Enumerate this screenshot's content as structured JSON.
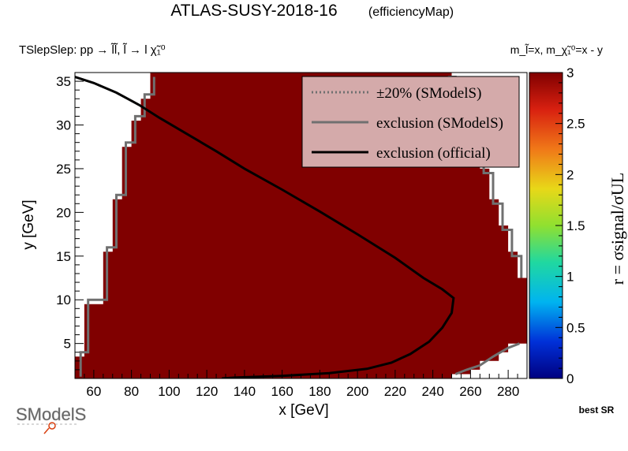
{
  "header": {
    "title": "ATLAS-SUSY-2018-16",
    "subtitle": "(efficiencyMap)",
    "process": "TSlepSlep: pp → l̃l̃, l̃ → l χ̃₁⁰",
    "mass_relation": "m_l̃=x, m_χ̃₁⁰=x - y",
    "best_sr": "best SR",
    "logo": "SModelS"
  },
  "colors": {
    "fill": "#800000",
    "official": "#000000",
    "smodels": "#707070",
    "legend_bg": "#d4aaaa"
  },
  "chart_data": {
    "type": "heatmap",
    "title": "ATLAS-SUSY-2018-16",
    "xlabel": "x [GeV]",
    "ylabel": "y [GeV]",
    "zlabel": "r = σsignal/σUL",
    "xlim": [
      50,
      290
    ],
    "ylim": [
      1,
      36
    ],
    "zlim": [
      0,
      3
    ],
    "xticks": [
      60,
      80,
      100,
      120,
      140,
      160,
      180,
      200,
      220,
      240,
      260,
      280
    ],
    "yticks": [
      5,
      10,
      15,
      20,
      25,
      30,
      35
    ],
    "zticks": [
      "0",
      "0.5",
      "1",
      "1.5",
      "2",
      "2.5",
      "3"
    ],
    "grid": false,
    "legend_placement": "top-right",
    "legend": [
      {
        "label": "±20% (SModelS)",
        "style": "dotted"
      },
      {
        "label": "exclusion (SModelS)",
        "style": "solid-grey"
      },
      {
        "label": "exclusion (official)",
        "style": "solid-black"
      }
    ],
    "region_left": [
      [
        50,
        1
      ],
      [
        50,
        3.5
      ],
      [
        55,
        3.5
      ],
      [
        55,
        9.5
      ],
      [
        65,
        9.5
      ],
      [
        65,
        15.5
      ],
      [
        70,
        15.5
      ],
      [
        70,
        21.5
      ],
      [
        75,
        21.5
      ],
      [
        75,
        27.5
      ],
      [
        80,
        27.5
      ],
      [
        80,
        30.5
      ],
      [
        85,
        30.5
      ],
      [
        85,
        33
      ],
      [
        90,
        33
      ],
      [
        90,
        36
      ]
    ],
    "region_right": [
      [
        250,
        36
      ],
      [
        250,
        34
      ],
      [
        255,
        34
      ],
      [
        255,
        31
      ],
      [
        260,
        31
      ],
      [
        260,
        28
      ],
      [
        265,
        28
      ],
      [
        265,
        25
      ],
      [
        270,
        25
      ],
      [
        270,
        21.5
      ],
      [
        275,
        21.5
      ],
      [
        275,
        18.5
      ],
      [
        280,
        18.5
      ],
      [
        280,
        15.5
      ],
      [
        285,
        15.5
      ],
      [
        285,
        12.5
      ],
      [
        290,
        12.5
      ],
      [
        290,
        5
      ],
      [
        280,
        5
      ],
      [
        280,
        4
      ],
      [
        275,
        4
      ],
      [
        275,
        3
      ],
      [
        265,
        3
      ],
      [
        265,
        2
      ],
      [
        260,
        2
      ],
      [
        260,
        1.5
      ],
      [
        250,
        1.5
      ],
      [
        250,
        1
      ]
    ],
    "exclusion_smodels_left": [
      [
        53,
        1.2
      ],
      [
        53,
        4
      ],
      [
        57,
        4
      ],
      [
        57,
        10
      ],
      [
        67,
        10
      ],
      [
        67,
        16
      ],
      [
        72,
        16
      ],
      [
        72,
        22
      ],
      [
        77,
        22
      ],
      [
        77,
        28
      ],
      [
        82,
        28
      ],
      [
        82,
        31
      ],
      [
        87,
        31
      ],
      [
        87,
        33.5
      ],
      [
        92,
        33.5
      ],
      [
        92,
        35.5
      ]
    ],
    "exclusion_smodels_right": [
      [
        248,
        35.5
      ],
      [
        252,
        35.5
      ],
      [
        252,
        33.5
      ],
      [
        257,
        33.5
      ],
      [
        257,
        30.5
      ],
      [
        262,
        30.5
      ],
      [
        262,
        27.5
      ],
      [
        267,
        27.5
      ],
      [
        267,
        24.5
      ],
      [
        272,
        24.5
      ],
      [
        272,
        21
      ],
      [
        277,
        21
      ],
      [
        277,
        18
      ],
      [
        282,
        18
      ],
      [
        282,
        15
      ],
      [
        287,
        15
      ],
      [
        287,
        12.5
      ]
    ],
    "exclusion_smodels_bottom": [
      [
        252,
        1.5
      ],
      [
        258,
        2
      ],
      [
        265,
        2.5
      ],
      [
        272,
        3.5
      ],
      [
        280,
        4.5
      ],
      [
        286,
        5
      ]
    ],
    "exclusion_official": [
      [
        50,
        35.5
      ],
      [
        60,
        34.8
      ],
      [
        72,
        33.7
      ],
      [
        84,
        32.3
      ],
      [
        95,
        30.8
      ],
      [
        110,
        28.9
      ],
      [
        125,
        27
      ],
      [
        140,
        25
      ],
      [
        160,
        22.6
      ],
      [
        180,
        20.1
      ],
      [
        200,
        17.5
      ],
      [
        220,
        14.8
      ],
      [
        235,
        12.5
      ],
      [
        245,
        11.2
      ],
      [
        251,
        10.2
      ],
      [
        250,
        8.5
      ],
      [
        245,
        6.8
      ],
      [
        238,
        5.2
      ],
      [
        228,
        3.8
      ],
      [
        218,
        2.8
      ],
      [
        205,
        2.1
      ],
      [
        185,
        1.6
      ],
      [
        160,
        1.3
      ],
      [
        135,
        1.1
      ],
      [
        128,
        1
      ]
    ]
  }
}
